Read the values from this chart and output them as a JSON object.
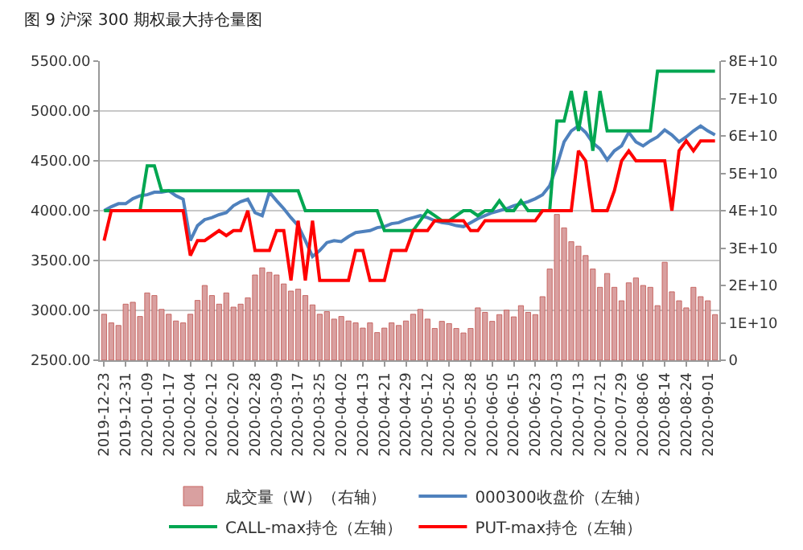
{
  "chart_data": {
    "type": "line",
    "title": "图 9 沪深 300 期权最大持仓量图",
    "categories": [
      "2019-12-23",
      null,
      null,
      "2019-12-31",
      null,
      null,
      "2020-01-09",
      null,
      null,
      "2020-01-17",
      null,
      null,
      "2020-02-04",
      null,
      null,
      "2020-02-12",
      null,
      null,
      "2020-02-20",
      null,
      null,
      "2020-02-28",
      null,
      null,
      "2020-03-09",
      null,
      null,
      "2020-03-17",
      null,
      null,
      "2020-03-25",
      null,
      null,
      "2020-04-02",
      null,
      null,
      "2020-04-13",
      null,
      null,
      "2020-04-21",
      null,
      null,
      "2020-04-29",
      null,
      null,
      "2020-05-12",
      null,
      null,
      "2020-05-20",
      null,
      null,
      "2020-05-28",
      null,
      null,
      "2020-06-05",
      null,
      null,
      "2020-06-15",
      null,
      null,
      "2020-06-23",
      null,
      null,
      "2020-07-03",
      null,
      null,
      "2020-07-13",
      null,
      null,
      "2020-07-21",
      null,
      null,
      "2020-07-29",
      null,
      null,
      "2020-08-06",
      null,
      null,
      "2020-08-14",
      null,
      null,
      "2020-08-24",
      null,
      null,
      "2020-09-01",
      null
    ],
    "series": [
      {
        "name": "成交量（W）（右轴）",
        "type": "bar",
        "axis": "y2",
        "color": "#d9a0a0",
        "values": [
          12300000000.0,
          10000000000.0,
          9300000000.0,
          15000000000.0,
          15500000000.0,
          11700000000.0,
          18000000000.0,
          17300000000.0,
          13600000000.0,
          12300000000.0,
          10500000000.0,
          10000000000.0,
          12300000000.0,
          16000000000.0,
          20000000000.0,
          17300000000.0,
          15000000000.0,
          18000000000.0,
          14200000000.0,
          15000000000.0,
          16700000000.0,
          22800000000.0,
          24700000000.0,
          23500000000.0,
          22800000000.0,
          20400000000.0,
          18500000000.0,
          19000000000.0,
          17300000000.0,
          14800000000.0,
          12300000000.0,
          13000000000.0,
          11000000000.0,
          11700000000.0,
          10500000000.0,
          10000000000.0,
          8600000000.0,
          10000000000.0,
          7400000000.0,
          8600000000.0,
          10000000000.0,
          9300000000.0,
          10500000000.0,
          12300000000.0,
          13600000000.0,
          11000000000.0,
          8500000000.0,
          10400000000.0,
          9800000000.0,
          8500000000.0,
          7300000000.0,
          8500000000.0,
          14000000000.0,
          12800000000.0,
          10400000000.0,
          12200000000.0,
          13400000000.0,
          11600000000.0,
          14600000000.0,
          12800000000.0,
          12200000000.0,
          17000000000.0,
          24400000000.0,
          39000000000.0,
          35400000000.0,
          31700000000.0,
          30500000000.0,
          28000000000.0,
          24400000000.0,
          19500000000.0,
          23200000000.0,
          19500000000.0,
          15900000000.0,
          20700000000.0,
          22000000000.0,
          20000000000.0,
          19500000000.0,
          14600000000.0,
          26200000000.0,
          18300000000.0,
          15900000000.0,
          14000000000.0,
          19500000000.0,
          17000000000.0,
          15900000000.0,
          12200000000.0
        ]
      },
      {
        "name": "000300收盘价（左轴）",
        "color": "#4f81bd",
        "values": [
          4000,
          4040,
          4070,
          4070,
          4120,
          4150,
          4160,
          4185,
          4185,
          4200,
          4150,
          4115,
          3700,
          3850,
          3910,
          3930,
          3960,
          3980,
          4050,
          4090,
          4115,
          3980,
          3950,
          4185,
          4100,
          4020,
          3930,
          3850,
          3700,
          3540,
          3600,
          3680,
          3700,
          3690,
          3740,
          3780,
          3790,
          3800,
          3830,
          3840,
          3870,
          3880,
          3910,
          3930,
          3950,
          3930,
          3900,
          3880,
          3870,
          3850,
          3840,
          3880,
          3920,
          3950,
          3980,
          4000,
          4020,
          4050,
          4070,
          4090,
          4120,
          4160,
          4250,
          4450,
          4690,
          4800,
          4850,
          4785,
          4680,
          4620,
          4510,
          4600,
          4650,
          4785,
          4690,
          4650,
          4700,
          4740,
          4810,
          4760,
          4690,
          4740,
          4800,
          4850,
          4800,
          4760
        ]
      },
      {
        "name": "CALL-max持仓（左轴）",
        "color": "#00a651",
        "values": [
          4000,
          4000,
          4000,
          4000,
          4000,
          4000,
          4450,
          4450,
          4200,
          4200,
          4200,
          4200,
          4200,
          4200,
          4200,
          4200,
          4200,
          4200,
          4200,
          4200,
          4200,
          4200,
          4200,
          4200,
          4200,
          4200,
          4200,
          4200,
          4000,
          4000,
          4000,
          4000,
          4000,
          4000,
          4000,
          4000,
          4000,
          4000,
          4000,
          3800,
          3800,
          3800,
          3800,
          3800,
          3900,
          4000,
          3950,
          3900,
          3900,
          3950,
          4000,
          4000,
          3950,
          4000,
          4000,
          4100,
          4000,
          4000,
          4100,
          4000,
          4000,
          4000,
          4000,
          4900,
          4900,
          5200,
          4800,
          5200,
          4600,
          5200,
          4800,
          4800,
          4800,
          4800,
          4800,
          4800,
          4800,
          5400,
          5400,
          5400,
          5400,
          5400,
          5400,
          5400,
          5400,
          5400
        ]
      },
      {
        "name": "PUT-max持仓（左轴）",
        "color": "#ff0000",
        "values": [
          3700,
          4000,
          4000,
          4000,
          4000,
          4000,
          4000,
          4000,
          4000,
          4000,
          4000,
          4000,
          3550,
          3700,
          3700,
          3750,
          3800,
          3750,
          3800,
          3800,
          4000,
          3600,
          3600,
          3600,
          3800,
          3800,
          3300,
          3900,
          3300,
          3900,
          3300,
          3300,
          3300,
          3300,
          3300,
          3600,
          3600,
          3300,
          3300,
          3300,
          3600,
          3600,
          3600,
          3800,
          3800,
          3800,
          3900,
          3900,
          3900,
          3900,
          3900,
          3800,
          3800,
          3900,
          3900,
          3900,
          3900,
          3900,
          3900,
          3900,
          3900,
          4000,
          4000,
          4000,
          4000,
          4000,
          4600,
          4500,
          4000,
          4000,
          4000,
          4200,
          4500,
          4600,
          4500,
          4500,
          4500,
          4500,
          4500,
          4000,
          4600,
          4700,
          4600,
          4700,
          4700,
          4700
        ]
      }
    ],
    "ylim": [
      2500,
      5500
    ],
    "yticks": [
      {
        "value": 2500,
        "label": "2500.00"
      },
      {
        "value": 3000,
        "label": "3000.00"
      },
      {
        "value": 3500,
        "label": "3500.00"
      },
      {
        "value": 4000,
        "label": "4000.00"
      },
      {
        "value": 4500,
        "label": "4500.00"
      },
      {
        "value": 5000,
        "label": "5000.00"
      },
      {
        "value": 5500,
        "label": "5500.00"
      }
    ],
    "y2lim": [
      0,
      80000000000.0
    ],
    "y2ticks": [
      0,
      {
        "value": 10000000000.0,
        "label": "1E+10"
      },
      {
        "value": 20000000000.0,
        "label": "2E+10"
      },
      {
        "value": 30000000000.0,
        "label": "3E+10"
      },
      {
        "value": 40000000000.0,
        "label": "4E+10"
      },
      {
        "value": 50000000000.0,
        "label": "5E+10"
      },
      {
        "value": 60000000000.0,
        "label": "6E+10"
      },
      {
        "value": 70000000000.0,
        "label": "7E+10"
      },
      {
        "value": 80000000000.0,
        "label": "8E+10"
      }
    ],
    "grid": "y",
    "legend": "bottom"
  }
}
